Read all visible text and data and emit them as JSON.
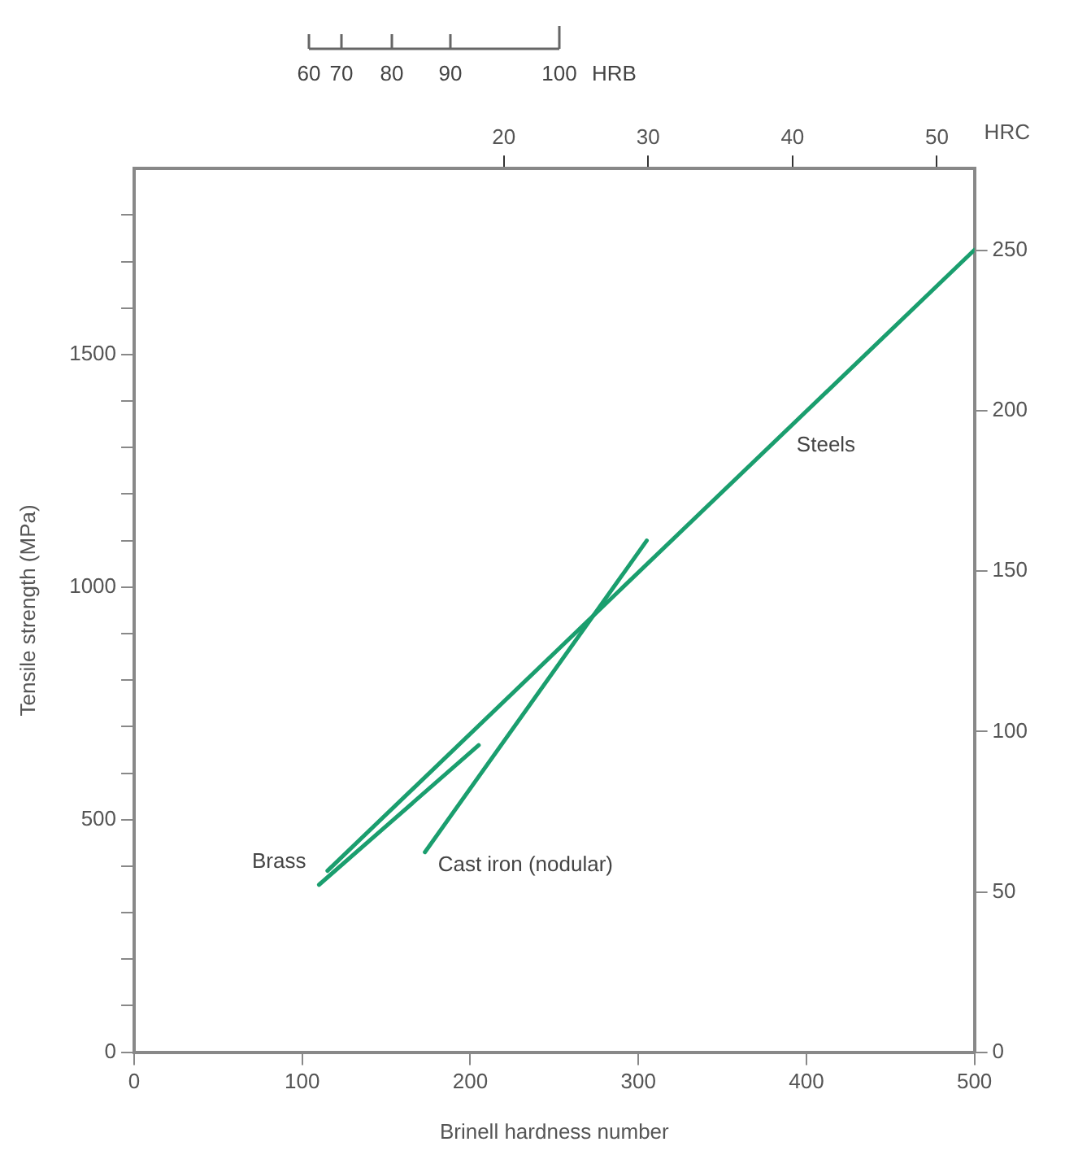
{
  "chart_data": {
    "type": "line",
    "xlabel": "Brinell hardness number",
    "ylabel": "Tensile strength (MPa)",
    "x2label": "HRC",
    "xlim": [
      0,
      500
    ],
    "xticks": [
      0,
      100,
      200,
      300,
      400,
      500
    ],
    "x2lim": [
      -5.6,
      52.6
    ],
    "x2ticks": [
      20,
      30,
      40,
      50
    ],
    "ylim": [
      0,
      1900
    ],
    "yticks": [
      0,
      {
        "value": 100,
        "label": null
      },
      {
        "value": 200,
        "label": null
      },
      {
        "value": 300,
        "label": null
      },
      {
        "value": 400,
        "label": null
      },
      500,
      {
        "value": 600,
        "label": null
      },
      {
        "value": 700,
        "label": null
      },
      {
        "value": 800,
        "label": null
      },
      {
        "value": 900,
        "label": null
      },
      1000,
      {
        "value": 1100,
        "label": null
      },
      {
        "value": 1200,
        "label": null
      },
      {
        "value": 1300,
        "label": null
      },
      {
        "value": 1400,
        "label": null
      },
      1500,
      {
        "value": 1600,
        "label": null
      },
      {
        "value": 1700,
        "label": null
      },
      {
        "value": 1800,
        "label": null
      }
    ],
    "y2lim": [
      0,
      275.6
    ],
    "y2ticks": [
      0,
      50,
      100,
      150,
      200,
      250
    ],
    "grid": false,
    "legend": false,
    "marker": "none",
    "line_style": "solid",
    "series": [
      {
        "name": "Steels",
        "color": "#1a9e6e",
        "x": [
          115,
          500
        ],
        "values": [
          390,
          1725
        ]
      },
      {
        "name": "Brass",
        "color": "#1a9e6e",
        "x": [
          110,
          205
        ],
        "values": [
          360,
          660
        ]
      },
      {
        "name": "Cast iron (nodular)",
        "color": "#1a9e6e",
        "x": [
          173,
          305
        ],
        "values": [
          430,
          1100
        ]
      }
    ],
    "annotations": [
      "60",
      "70",
      "80",
      "90",
      "100",
      "HRB"
    ]
  }
}
